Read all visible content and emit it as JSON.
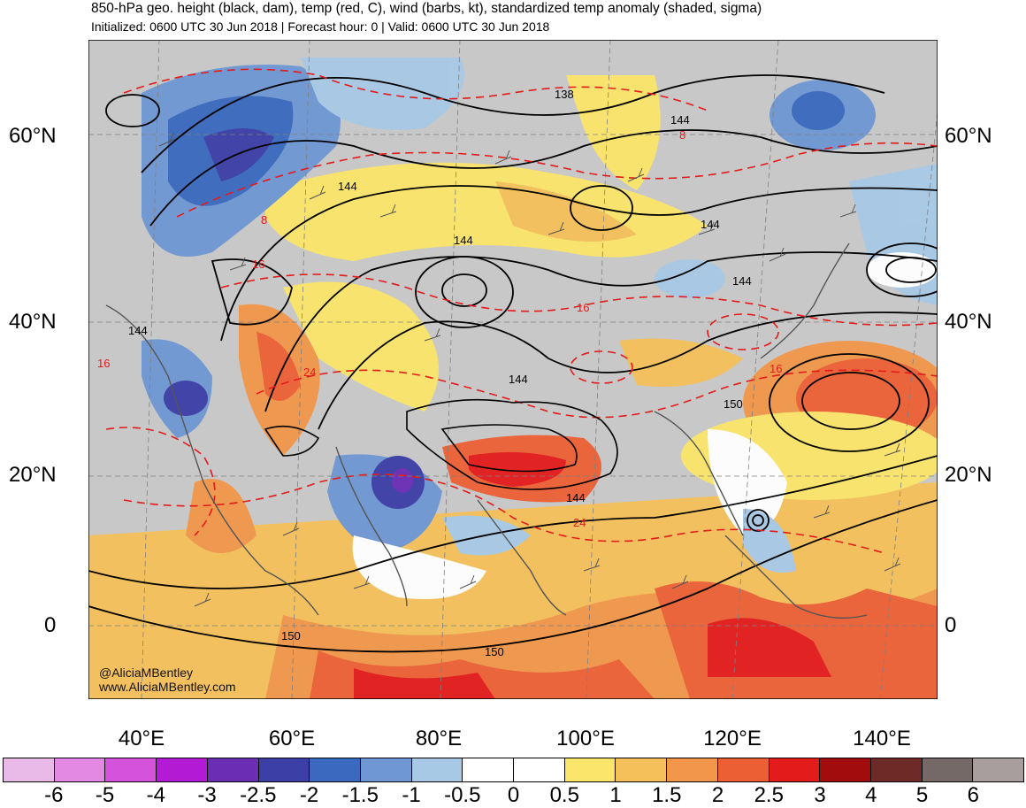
{
  "header": {
    "title": "850-hPa geo. height (black, dam), temp (red, C), wind (barbs, kt), standardized temp anomaly (shaded, sigma)",
    "subtitle": "Initialized: 0600 UTC 30 Jun 2018 | Forecast hour: 0 | Valid: 0600 UTC 30 Jun 2018"
  },
  "map": {
    "lat_labels": [
      "60°N",
      "40°N",
      "20°N",
      "0"
    ],
    "lon_labels": [
      "40°E",
      "60°E",
      "80°E",
      "100°E",
      "120°E",
      "140°E"
    ],
    "height_contour_labels": [
      "138",
      "144",
      "144",
      "144",
      "144",
      "144",
      "144",
      "144",
      "144",
      "150",
      "150",
      "150"
    ],
    "temp_contour_labels": [
      "8",
      "8",
      "16",
      "16",
      "16",
      "24",
      "24",
      "16"
    ],
    "credit_lines": [
      "@AliciaMBentley",
      "www.AliciaMBentley.com"
    ]
  },
  "colorbar": {
    "ticks": [
      "-6",
      "-5",
      "-4",
      "-3",
      "-2.5",
      "-2",
      "-1.5",
      "-1",
      "-0.5",
      "0",
      "0.5",
      "1",
      "1.5",
      "2",
      "2.5",
      "3",
      "4",
      "5",
      "6"
    ],
    "colors": [
      "#e9b9e8",
      "#e388e3",
      "#d552dc",
      "#b21ad4",
      "#6a2db4",
      "#3b3fa6",
      "#3a69bf",
      "#6f97d3",
      "#a8c9e6",
      "#ffffff",
      "#ffffff",
      "#fbe56a",
      "#f5c05a",
      "#f1964a",
      "#ec5f35",
      "#e31b1b",
      "#a30c0c",
      "#6e2a26",
      "#756968",
      "#a89e9e"
    ]
  }
}
